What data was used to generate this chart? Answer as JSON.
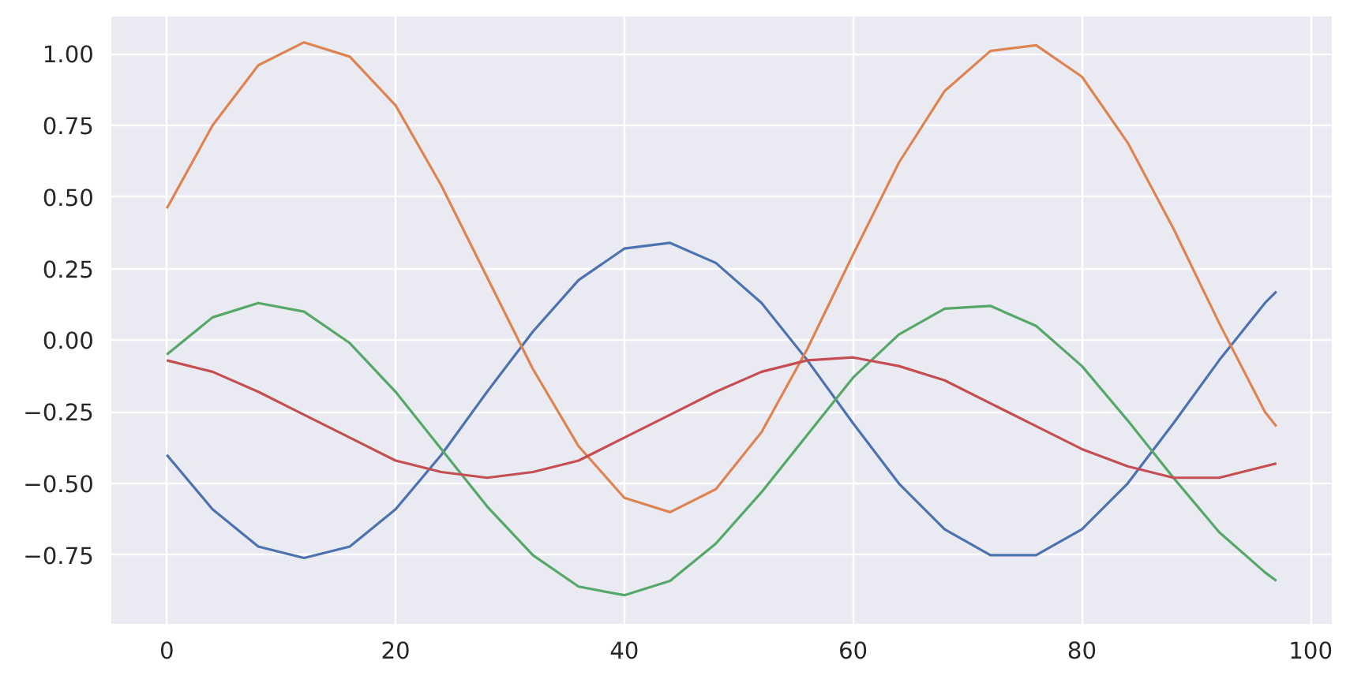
{
  "chart_data": {
    "type": "line",
    "x": [
      0,
      4,
      8,
      12,
      16,
      20,
      24,
      28,
      32,
      36,
      40,
      44,
      48,
      52,
      56,
      60,
      64,
      68,
      72,
      76,
      80,
      84,
      88,
      92,
      96,
      97
    ],
    "series": [
      {
        "color": "#4c72b0",
        "values": [
          -0.4,
          -0.59,
          -0.72,
          -0.76,
          -0.72,
          -0.59,
          -0.4,
          -0.18,
          0.03,
          0.21,
          0.32,
          0.34,
          0.27,
          0.13,
          -0.07,
          -0.29,
          -0.5,
          -0.66,
          -0.75,
          -0.75,
          -0.66,
          -0.5,
          -0.29,
          -0.07,
          0.13,
          0.17
        ]
      },
      {
        "color": "#dd8452",
        "values": [
          0.46,
          0.75,
          0.96,
          1.04,
          0.99,
          0.82,
          0.54,
          0.22,
          -0.1,
          -0.37,
          -0.55,
          -0.6,
          -0.52,
          -0.32,
          -0.03,
          0.3,
          0.62,
          0.87,
          1.01,
          1.03,
          0.92,
          0.69,
          0.39,
          0.06,
          -0.25,
          -0.3
        ]
      },
      {
        "color": "#55a868",
        "values": [
          -0.05,
          0.08,
          0.13,
          0.1,
          -0.01,
          -0.18,
          -0.38,
          -0.58,
          -0.75,
          -0.86,
          -0.89,
          -0.84,
          -0.71,
          -0.53,
          -0.33,
          -0.13,
          0.02,
          0.11,
          0.12,
          0.05,
          -0.09,
          -0.28,
          -0.48,
          -0.67,
          -0.81,
          -0.84
        ]
      },
      {
        "color": "#c44e52",
        "values": [
          -0.07,
          -0.11,
          -0.18,
          -0.26,
          -0.34,
          -0.42,
          -0.46,
          -0.48,
          -0.46,
          -0.42,
          -0.34,
          -0.26,
          -0.18,
          -0.11,
          -0.07,
          -0.06,
          -0.09,
          -0.14,
          -0.22,
          -0.3,
          -0.38,
          -0.44,
          -0.48,
          -0.48,
          -0.44,
          -0.43
        ]
      }
    ],
    "xlim": [
      -4.85,
      101.85
    ],
    "ylim": [
      -0.99,
      1.13
    ],
    "xticks": [
      0,
      20,
      40,
      60,
      80,
      100
    ],
    "yticks": [
      {
        "value": -0.75,
        "label": "−0.75"
      },
      {
        "value": -0.5,
        "label": "−0.50"
      },
      {
        "value": -0.25,
        "label": "−0.25"
      },
      {
        "value": 0,
        "label": "0.00"
      },
      {
        "value": 0.25,
        "label": "0.25"
      },
      {
        "value": 0.5,
        "label": "0.50"
      },
      {
        "value": 0.75,
        "label": "0.75"
      },
      {
        "value": 1.0,
        "label": "1.00"
      }
    ],
    "grid": true,
    "line_style": "solid",
    "marker": "none"
  }
}
